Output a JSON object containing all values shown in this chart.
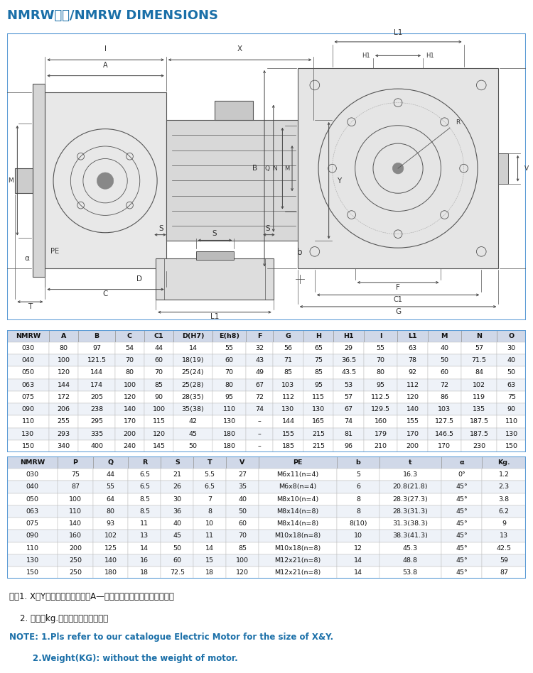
{
  "title_part1": "NMRW尺寸/",
  "title_part2": "NMRW DIMENSIONS",
  "title_color": "#1a6fa8",
  "border_color": "#5b9bd5",
  "table1_headers": [
    "NMRW",
    "A",
    "B",
    "C",
    "C1",
    "D(H7)",
    "E(h8)",
    "F",
    "G",
    "H",
    "H1",
    "I",
    "L1",
    "M",
    "N",
    "O"
  ],
  "table1_data": [
    [
      "030",
      "80",
      "97",
      "54",
      "44",
      "14",
      "55",
      "32",
      "56",
      "65",
      "29",
      "55",
      "63",
      "40",
      "57",
      "30"
    ],
    [
      "040",
      "100",
      "121.5",
      "70",
      "60",
      "18(19)",
      "60",
      "43",
      "71",
      "75",
      "36.5",
      "70",
      "78",
      "50",
      "71.5",
      "40"
    ],
    [
      "050",
      "120",
      "144",
      "80",
      "70",
      "25(24)",
      "70",
      "49",
      "85",
      "85",
      "43.5",
      "80",
      "92",
      "60",
      "84",
      "50"
    ],
    [
      "063",
      "144",
      "174",
      "100",
      "85",
      "25(28)",
      "80",
      "67",
      "103",
      "95",
      "53",
      "95",
      "112",
      "72",
      "102",
      "63"
    ],
    [
      "075",
      "172",
      "205",
      "120",
      "90",
      "28(35)",
      "95",
      "72",
      "112",
      "115",
      "57",
      "112.5",
      "120",
      "86",
      "119",
      "75"
    ],
    [
      "090",
      "206",
      "238",
      "140",
      "100",
      "35(38)",
      "110",
      "74",
      "130",
      "130",
      "67",
      "129.5",
      "140",
      "103",
      "135",
      "90"
    ],
    [
      "110",
      "255",
      "295",
      "170",
      "115",
      "42",
      "130",
      "–",
      "144",
      "165",
      "74",
      "160",
      "155",
      "127.5",
      "187.5",
      "110"
    ],
    [
      "130",
      "293",
      "335",
      "200",
      "120",
      "45",
      "180",
      "–",
      "155",
      "215",
      "81",
      "179",
      "170",
      "146.5",
      "187.5",
      "130"
    ],
    [
      "150",
      "340",
      "400",
      "240",
      "145",
      "50",
      "180",
      "–",
      "185",
      "215",
      "96",
      "210",
      "200",
      "170",
      "230",
      "150"
    ]
  ],
  "table2_headers": [
    "NMRW",
    "P",
    "Q",
    "R",
    "S",
    "T",
    "V",
    "PE",
    "b",
    "t",
    "α",
    "Kg."
  ],
  "table2_data": [
    [
      "030",
      "75",
      "44",
      "6.5",
      "21",
      "5.5",
      "27",
      "M6x11(n=4)",
      "5",
      "16.3",
      "0°",
      "1.2"
    ],
    [
      "040",
      "87",
      "55",
      "6.5",
      "26",
      "6.5",
      "35",
      "M6x8(n=4)",
      "6",
      "20.8(21.8)",
      "45°",
      "2.3"
    ],
    [
      "050",
      "100",
      "64",
      "8.5",
      "30",
      "7",
      "40",
      "M8x10(n=4)",
      "8",
      "28.3(27.3)",
      "45°",
      "3.8"
    ],
    [
      "063",
      "110",
      "80",
      "8.5",
      "36",
      "8",
      "50",
      "M8x14(n=8)",
      "8",
      "28.3(31.3)",
      "45°",
      "6.2"
    ],
    [
      "075",
      "140",
      "93",
      "11",
      "40",
      "10",
      "60",
      "M8x14(n=8)",
      "8(10)",
      "31.3(38.3)",
      "45°",
      "9"
    ],
    [
      "090",
      "160",
      "102",
      "13",
      "45",
      "11",
      "70",
      "M10x18(n=8)",
      "10",
      "38.3(41.3)",
      "45°",
      "13"
    ],
    [
      "110",
      "200",
      "125",
      "14",
      "50",
      "14",
      "85",
      "M10x18(n=8)",
      "12",
      "45.3",
      "45°",
      "42.5"
    ],
    [
      "130",
      "250",
      "140",
      "16",
      "60",
      "15",
      "100",
      "M12x21(n=8)",
      "14",
      "48.8",
      "45°",
      "59"
    ],
    [
      "150",
      "250",
      "180",
      "18",
      "72.5",
      "18",
      "120",
      "M12x21(n=8)",
      "14",
      "53.8",
      "45°",
      "87"
    ]
  ],
  "note_cn1": "注：1. X、Y尺寸参见本公司样本A—《通用电机》篇中的尺寸部分；",
  "note_cn2": "    2. 重量（kg.）不包含电机的重量。",
  "note_en1": "NOTE: 1.Pls refer to our catalogue Electric Motor for the size of X&Y.",
  "note_en2": "        2.Weight(KG): without the weight of motor.",
  "note_color": "#1a6fa8",
  "lc": "#555555",
  "table_border": "#5b9bd5",
  "header_bg": "#d0d8e8",
  "row_alt_bg": "#eef2f8"
}
